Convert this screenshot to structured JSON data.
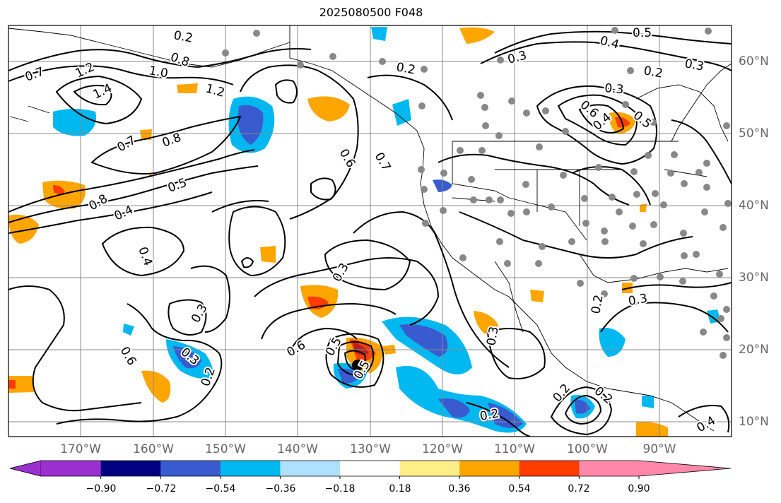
{
  "title": "2025080500 F048",
  "lon_labels": [
    "170°W",
    "160°W",
    "150°W",
    "140°W",
    "130°W",
    "120°W",
    "110°W",
    "100°W",
    "90°W"
  ],
  "lat_labels": [
    "60°N",
    "50°N",
    "40°N",
    "30°N",
    "20°N",
    "10°N"
  ],
  "colorbar": {
    "ticks": [
      "−0.90",
      "−0.72",
      "−0.54",
      "−0.36",
      "−0.18",
      "0.18",
      "0.36",
      "0.54",
      "0.72",
      "0.90"
    ],
    "colors": [
      "#9b30d0",
      "#000080",
      "#3a5bd0",
      "#00b8f0",
      "#b0e0ff",
      "#ffffff",
      "#ffee88",
      "#ffa500",
      "#ff3c00",
      "#b22222",
      "#ff88aa"
    ]
  },
  "contour_labels": [
    "0.7",
    "1.2",
    "1.4",
    "1.0",
    "0.8",
    "1.2",
    "0.7",
    "0.8",
    "0.5",
    "0.8",
    "0.4",
    "0.4",
    "0.6",
    "0.7",
    "0.2",
    "0.3",
    "0.4",
    "0.5",
    "0.3",
    "0.2",
    "0.3",
    "0.6",
    "0.5",
    "0.4",
    "0.3",
    "0.6",
    "0.5",
    "0.5",
    "0.6",
    "0.3",
    "0.2",
    "0.2",
    "0.3",
    "0.2",
    "0.2",
    "0.3",
    "0.2",
    "0.3",
    "0.4",
    "0.2"
  ]
}
